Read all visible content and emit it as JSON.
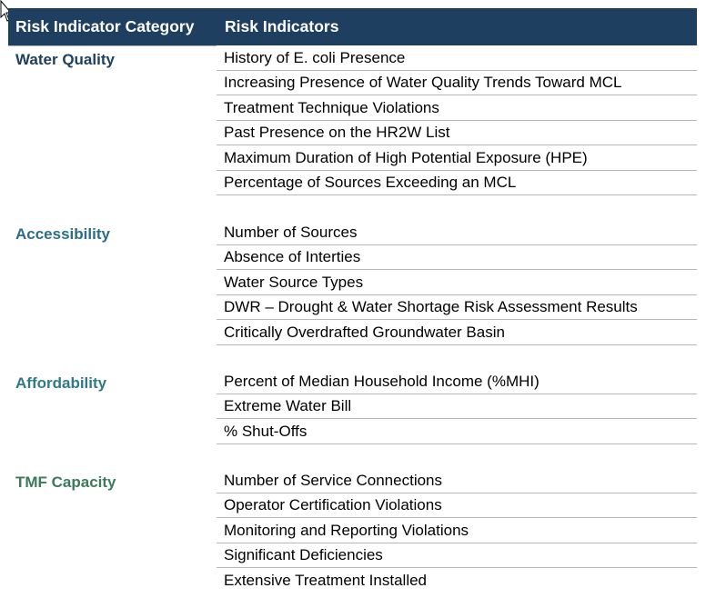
{
  "header": {
    "col1": "Risk Indicator Category",
    "col2": "Risk Indicators"
  },
  "colors": {
    "header_bg": "#1f3f60",
    "water_quality": "#1f3f60",
    "accessibility": "#2a6d8a",
    "affordability": "#2e7a86",
    "tmf_capacity": "#3d7a5c"
  },
  "categories": [
    {
      "name": "Water Quality",
      "indicators": [
        "History of E. coli Presence",
        "Increasing Presence of Water Quality Trends Toward MCL",
        "Treatment Technique Violations",
        "Past Presence on the HR2W List",
        "Maximum Duration of High Potential Exposure (HPE)",
        "Percentage of Sources Exceeding an MCL"
      ]
    },
    {
      "name": "Accessibility",
      "indicators": [
        "Number of Sources",
        "Absence of Interties",
        "Water Source Types",
        "DWR – Drought & Water Shortage Risk Assessment Results",
        "Critically Overdrafted Groundwater Basin"
      ]
    },
    {
      "name": "Affordability",
      "indicators": [
        "Percent of Median Household Income (%MHI)",
        "Extreme Water Bill",
        "% Shut-Offs"
      ]
    },
    {
      "name": "TMF Capacity",
      "indicators": [
        "Number of Service Connections",
        "Operator Certification Violations",
        "Monitoring and Reporting Violations",
        "Significant Deficiencies",
        "Extensive Treatment Installed"
      ]
    }
  ]
}
